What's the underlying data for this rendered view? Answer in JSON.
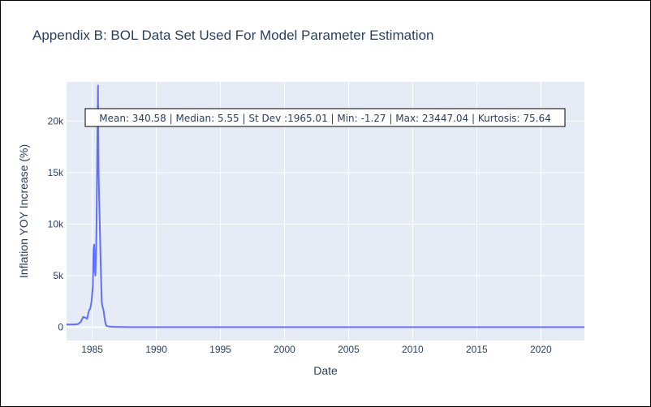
{
  "title": "Appendix B: BOL Data Set Used For Model Parameter Estimation",
  "colors": {
    "plot_background": "#e5ecf6",
    "grid": "#ffffff",
    "line": "#636efa",
    "text": "#2a3f5f",
    "annotation_border": "#000000"
  },
  "chart_data": {
    "type": "line",
    "title": "Appendix B: BOL Data Set Used For Model Parameter Estimation",
    "xlabel": "Date",
    "ylabel": "Inflation YOY Increase (%)",
    "xlim": [
      1983.0,
      2023.4
    ],
    "ylim": [
      -1300,
      23800
    ],
    "grid": true,
    "x_ticks": [
      1985,
      1990,
      1995,
      2000,
      2005,
      2010,
      2015,
      2020
    ],
    "x_tick_labels": [
      "1985",
      "1990",
      "1995",
      "2000",
      "2005",
      "2010",
      "2015",
      "2020"
    ],
    "y_ticks": [
      0,
      5000,
      10000,
      15000,
      20000
    ],
    "y_tick_labels": [
      "0",
      "5k",
      "10k",
      "15k",
      "20k"
    ],
    "annotation": "Mean: 340.58 | Median: 5.55 | St Dev :1965.01 | Min: -1.27 | Max: 23447.04 | Kurtosis: 75.64",
    "series": [
      {
        "x": [
          1983.0,
          1983.3,
          1983.6,
          1983.9,
          1984.1,
          1984.3,
          1984.5,
          1984.6,
          1984.75,
          1984.85,
          1984.95,
          1985.05,
          1985.1,
          1985.15,
          1985.2,
          1985.25,
          1985.3,
          1985.35,
          1985.4,
          1985.45,
          1985.5,
          1985.55,
          1985.6,
          1985.65,
          1985.7,
          1985.75,
          1985.8,
          1985.85,
          1985.9,
          1985.95,
          1986.0,
          1986.05,
          1986.1,
          1986.15,
          1986.25,
          1986.35,
          1986.5,
          1986.7,
          1987.0,
          1987.5,
          1988.0,
          1990.0,
          1995.0,
          2000.0,
          2005.0,
          2010.0,
          2015.0,
          2020.0,
          2023.4
        ],
        "y": [
          250,
          250,
          250,
          300,
          500,
          1000,
          900,
          800,
          1600,
          1800,
          2500,
          4000,
          7600,
          8000,
          5500,
          5000,
          7000,
          11000,
          18000,
          23447,
          15000,
          12000,
          9500,
          7000,
          4500,
          2400,
          2000,
          1800,
          1500,
          1000,
          600,
          300,
          150,
          100,
          80,
          60,
          40,
          30,
          20,
          5,
          0,
          0,
          0,
          0,
          0,
          0,
          0,
          0,
          0
        ]
      }
    ]
  }
}
